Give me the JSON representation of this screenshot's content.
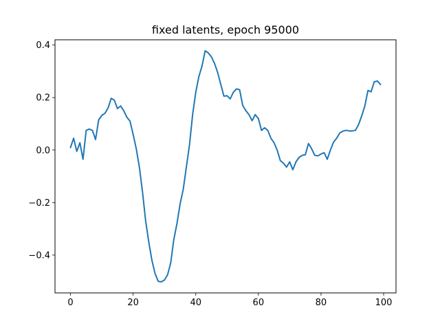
{
  "chart_data": {
    "type": "line",
    "title": "fixed latents, epoch 95000",
    "xlabel": "",
    "ylabel": "",
    "xlim": [
      -4.95,
      103.95
    ],
    "ylim": [
      -0.544,
      0.42
    ],
    "grid": false,
    "xticks": [
      0,
      20,
      40,
      60,
      80,
      100
    ],
    "xtick_labels": [
      "0",
      "20",
      "40",
      "60",
      "80",
      "100"
    ],
    "yticks": [
      -0.4,
      -0.2,
      0.0,
      0.2,
      0.4
    ],
    "ytick_labels": [
      "−0.4",
      "−0.2",
      "0.0",
      "0.2",
      "0.4"
    ],
    "series": [
      {
        "color": "#1f77b4",
        "x": [
          0,
          1,
          2,
          3,
          4,
          5,
          6,
          7,
          8,
          9,
          10,
          11,
          12,
          13,
          14,
          15,
          16,
          17,
          18,
          19,
          20,
          21,
          22,
          23,
          24,
          25,
          26,
          27,
          28,
          29,
          30,
          31,
          32,
          33,
          34,
          35,
          36,
          37,
          38,
          39,
          40,
          41,
          42,
          43,
          44,
          45,
          46,
          47,
          48,
          49,
          50,
          51,
          52,
          53,
          54,
          55,
          56,
          57,
          58,
          59,
          60,
          61,
          62,
          63,
          64,
          65,
          66,
          67,
          68,
          69,
          70,
          71,
          72,
          73,
          74,
          75,
          76,
          77,
          78,
          79,
          80,
          81,
          82,
          83,
          84,
          85,
          86,
          87,
          88,
          89,
          90,
          91,
          92,
          93,
          94,
          95,
          96,
          97,
          98,
          99
        ],
        "values": [
          0.01,
          0.045,
          -0.005,
          0.028,
          -0.035,
          0.075,
          0.08,
          0.075,
          0.04,
          0.115,
          0.132,
          0.14,
          0.16,
          0.197,
          0.19,
          0.158,
          0.168,
          0.15,
          0.125,
          0.11,
          0.06,
          0.005,
          -0.065,
          -0.16,
          -0.27,
          -0.35,
          -0.42,
          -0.47,
          -0.5,
          -0.502,
          -0.495,
          -0.475,
          -0.43,
          -0.34,
          -0.28,
          -0.205,
          -0.15,
          -0.065,
          0.02,
          0.135,
          0.22,
          0.28,
          0.32,
          0.378,
          0.37,
          0.355,
          0.33,
          0.295,
          0.25,
          0.205,
          0.207,
          0.195,
          0.22,
          0.233,
          0.23,
          0.17,
          0.15,
          0.135,
          0.112,
          0.135,
          0.12,
          0.075,
          0.085,
          0.075,
          0.045,
          0.028,
          0.0,
          -0.04,
          -0.05,
          -0.065,
          -0.045,
          -0.075,
          -0.045,
          -0.028,
          -0.02,
          -0.018,
          0.025,
          0.005,
          -0.02,
          -0.022,
          -0.015,
          -0.01,
          -0.035,
          0.0,
          0.03,
          0.045,
          0.065,
          0.072,
          0.075,
          0.073,
          0.073,
          0.075,
          0.097,
          0.13,
          0.168,
          0.227,
          0.222,
          0.26,
          0.263,
          0.25
        ]
      }
    ]
  }
}
